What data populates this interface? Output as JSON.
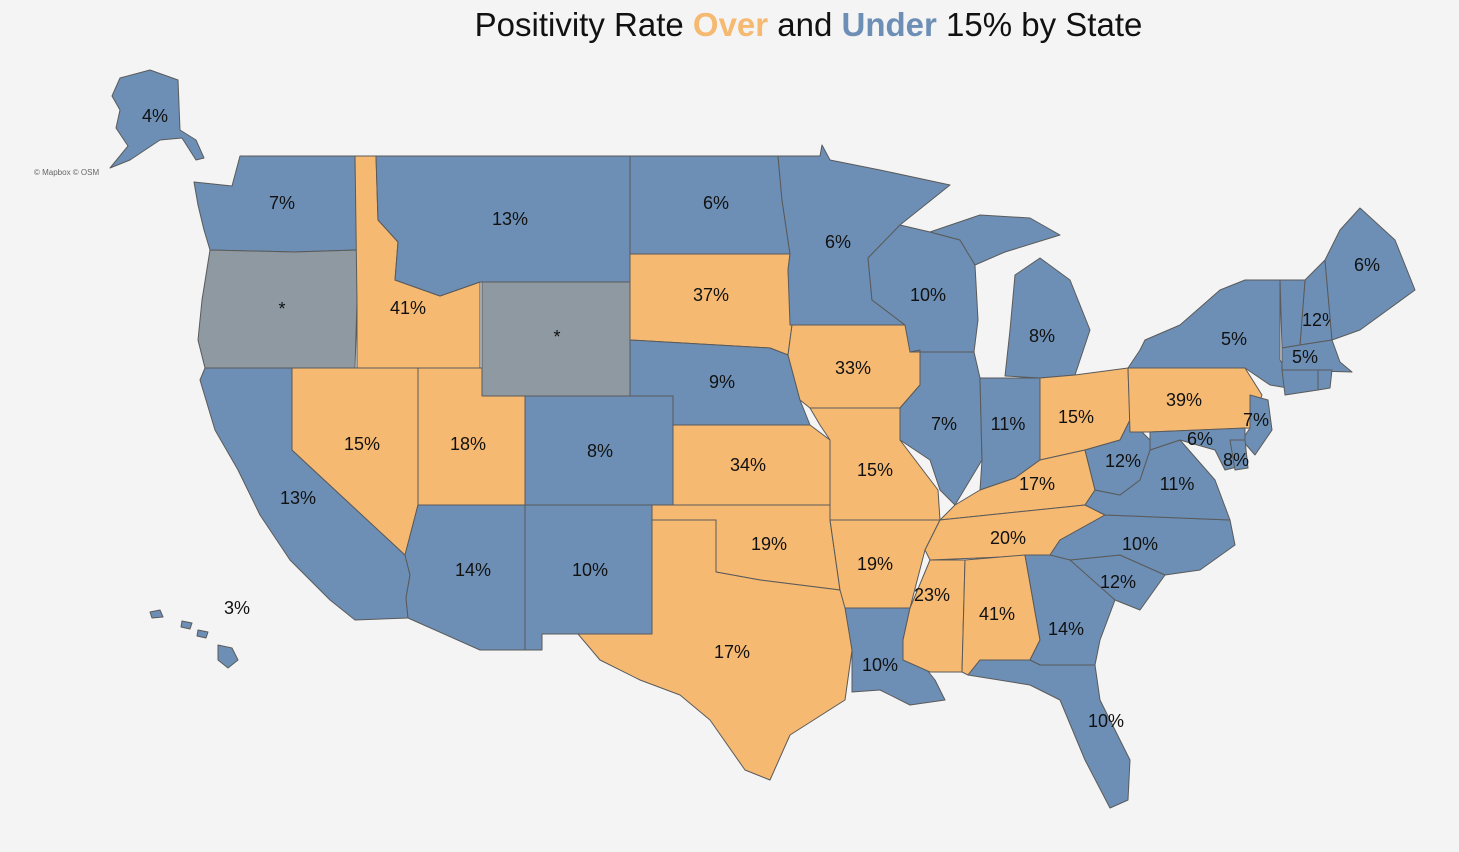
{
  "title": {
    "part1": "Positivity Rate ",
    "over": "Over",
    "part2": " and ",
    "under": "Under",
    "part3": " 15% by State"
  },
  "attribution": "© Mapbox © OSM",
  "colors": {
    "over": "#f5b971",
    "under": "#6d8fb5",
    "no_data": "#8e99a2",
    "background": "#f4f4f4"
  },
  "states": [
    {
      "id": "AK",
      "label": "4%",
      "category": "under"
    },
    {
      "id": "HI",
      "label": "3%",
      "category": "under"
    },
    {
      "id": "WA",
      "label": "7%",
      "category": "under"
    },
    {
      "id": "OR",
      "label": "*",
      "category": "no_data"
    },
    {
      "id": "CA",
      "label": "13%",
      "category": "under"
    },
    {
      "id": "ID",
      "label": "41%",
      "category": "over"
    },
    {
      "id": "NV",
      "label": "15%",
      "category": "over"
    },
    {
      "id": "MT",
      "label": "13%",
      "category": "under"
    },
    {
      "id": "WY",
      "label": "*",
      "category": "no_data"
    },
    {
      "id": "UT",
      "label": "18%",
      "category": "over"
    },
    {
      "id": "AZ",
      "label": "14%",
      "category": "under"
    },
    {
      "id": "CO",
      "label": "8%",
      "category": "under"
    },
    {
      "id": "NM",
      "label": "10%",
      "category": "under"
    },
    {
      "id": "ND",
      "label": "6%",
      "category": "under"
    },
    {
      "id": "SD",
      "label": "37%",
      "category": "over"
    },
    {
      "id": "NE",
      "label": "9%",
      "category": "under"
    },
    {
      "id": "KS",
      "label": "34%",
      "category": "over"
    },
    {
      "id": "OK",
      "label": "19%",
      "category": "over"
    },
    {
      "id": "TX",
      "label": "17%",
      "category": "over"
    },
    {
      "id": "MN",
      "label": "6%",
      "category": "under"
    },
    {
      "id": "IA",
      "label": "33%",
      "category": "over"
    },
    {
      "id": "MO",
      "label": "15%",
      "category": "over"
    },
    {
      "id": "AR",
      "label": "19%",
      "category": "over"
    },
    {
      "id": "LA",
      "label": "10%",
      "category": "under"
    },
    {
      "id": "WI",
      "label": "10%",
      "category": "under"
    },
    {
      "id": "IL",
      "label": "7%",
      "category": "under"
    },
    {
      "id": "MI",
      "label": "8%",
      "category": "under"
    },
    {
      "id": "IN",
      "label": "11%",
      "category": "under"
    },
    {
      "id": "OH",
      "label": "15%",
      "category": "over"
    },
    {
      "id": "KY",
      "label": "17%",
      "category": "over"
    },
    {
      "id": "TN",
      "label": "20%",
      "category": "over"
    },
    {
      "id": "MS",
      "label": "23%",
      "category": "over"
    },
    {
      "id": "AL",
      "label": "41%",
      "category": "over"
    },
    {
      "id": "GA",
      "label": "14%",
      "category": "under"
    },
    {
      "id": "FL",
      "label": "10%",
      "category": "under"
    },
    {
      "id": "SC",
      "label": "12%",
      "category": "under"
    },
    {
      "id": "NC",
      "label": "10%",
      "category": "under"
    },
    {
      "id": "VA",
      "label": "11%",
      "category": "under"
    },
    {
      "id": "WV",
      "label": "12%",
      "category": "under"
    },
    {
      "id": "PA",
      "label": "39%",
      "category": "over"
    },
    {
      "id": "NY",
      "label": "5%",
      "category": "under"
    },
    {
      "id": "NJ",
      "label": "7%",
      "category": "under"
    },
    {
      "id": "MD",
      "label": "6%",
      "category": "under"
    },
    {
      "id": "DE",
      "label": "8%",
      "category": "under"
    },
    {
      "id": "NH",
      "label": "12%",
      "category": "under"
    },
    {
      "id": "VT",
      "label": "",
      "category": "under"
    },
    {
      "id": "MA",
      "label": "5%",
      "category": "under"
    },
    {
      "id": "CT",
      "label": "",
      "category": "under"
    },
    {
      "id": "RI",
      "label": "",
      "category": "under"
    },
    {
      "id": "ME",
      "label": "6%",
      "category": "under"
    }
  ]
}
